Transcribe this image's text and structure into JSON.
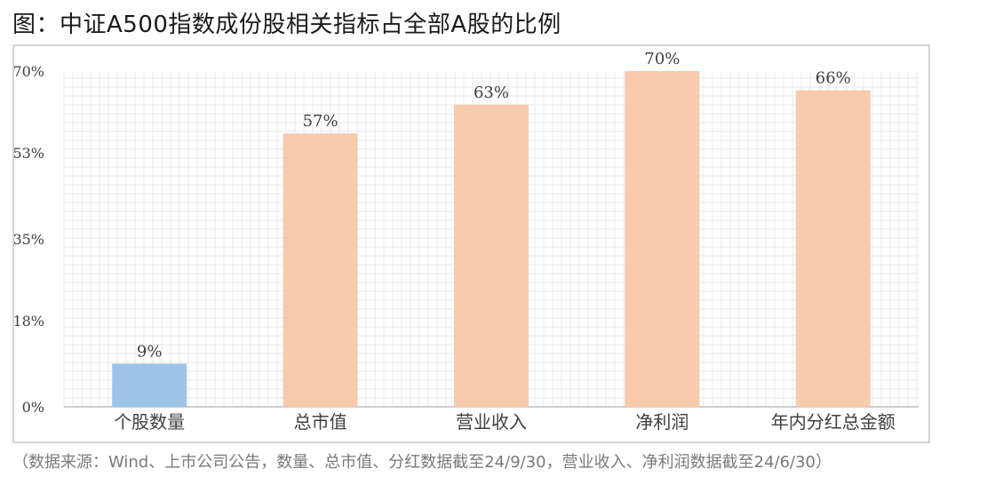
{
  "title": "图：中证A500指数成份股相关指标占全部A股的比例",
  "source": "（数据来源：Wind、上市公司公告，数量、总市值、分红数据截至24/9/30，营业收入、净利润数据截至24/6/30）",
  "colors": {
    "highlight_bar": "#9dc3e6",
    "bar": "#f8cbad",
    "grid": "#e8e8e8",
    "axis": "#bfbfbf",
    "text": "#3f3f3f"
  },
  "chart_data": {
    "type": "bar",
    "categories": [
      "个股数量",
      "总市值",
      "营业收入",
      "净利润",
      "年内分红总金额"
    ],
    "values": [
      9,
      57,
      63,
      70,
      66
    ],
    "value_labels": [
      "9%",
      "57%",
      "63%",
      "70%",
      "66%"
    ],
    "highlight_index": 0,
    "y_ticks": [
      0,
      18,
      35,
      53,
      70
    ],
    "y_tick_labels": [
      "0%",
      "18%",
      "35%",
      "53%",
      "70%"
    ],
    "ylim": [
      0,
      70
    ],
    "grid": true
  }
}
